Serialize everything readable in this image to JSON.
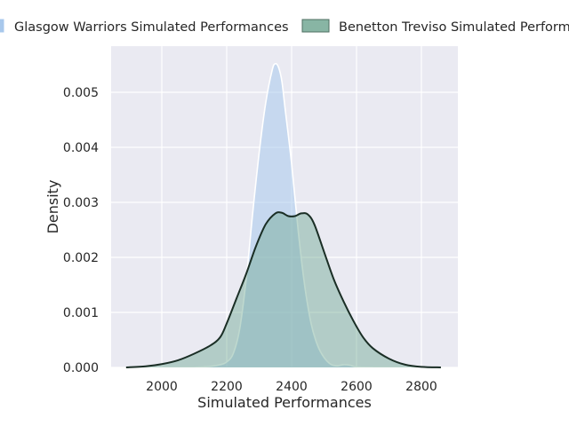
{
  "chart_data": {
    "type": "area",
    "xlabel": "Simulated Performances",
    "ylabel": "Density",
    "xlim": [
      1850,
      2880
    ],
    "ylim": [
      0,
      0.00575
    ],
    "xticks": [
      2000,
      2200,
      2400,
      2600,
      2800
    ],
    "yticks": [
      0.0,
      0.001,
      0.002,
      0.003,
      0.004,
      0.005
    ],
    "ytick_labels": [
      "0.000",
      "0.001",
      "0.002",
      "0.003",
      "0.004",
      "0.005"
    ],
    "grid": true,
    "legend_placement": "top",
    "series": [
      {
        "name": "Glasgow Warriors Simulated Performances",
        "fill": "#a8c8ec",
        "edge": "#ffffff",
        "x": [
          2100,
          2150,
          2180,
          2200,
          2220,
          2240,
          2260,
          2280,
          2300,
          2320,
          2340,
          2350,
          2360,
          2370,
          2380,
          2400,
          2420,
          2440,
          2460,
          2480,
          2500,
          2520,
          2540,
          2560,
          2580,
          2600,
          2650
        ],
        "y": [
          0.0,
          2e-05,
          5e-05,
          0.0001,
          0.00025,
          0.0007,
          0.0016,
          0.0028,
          0.0039,
          0.0048,
          0.0054,
          0.00552,
          0.00545,
          0.0052,
          0.0047,
          0.0037,
          0.0025,
          0.0015,
          0.0008,
          0.0004,
          0.00018,
          6e-05,
          3e-05,
          5e-05,
          4e-05,
          1e-05,
          0.0
        ]
      },
      {
        "name": "Benetton Treviso Simulated Performances",
        "fill": "#6fa893",
        "edge": "#1a2e25",
        "x": [
          1890,
          1950,
          2000,
          2050,
          2100,
          2150,
          2180,
          2200,
          2230,
          2260,
          2290,
          2320,
          2350,
          2370,
          2390,
          2410,
          2430,
          2450,
          2470,
          2500,
          2530,
          2560,
          2590,
          2620,
          2650,
          2700,
          2750,
          2800,
          2860
        ],
        "y": [
          0.0,
          2e-05,
          6e-05,
          0.00013,
          0.00025,
          0.0004,
          0.00055,
          0.0008,
          0.00125,
          0.0017,
          0.0022,
          0.0026,
          0.0028,
          0.00281,
          0.00275,
          0.00275,
          0.0028,
          0.00278,
          0.0026,
          0.0021,
          0.0016,
          0.0012,
          0.00085,
          0.00055,
          0.00035,
          0.00016,
          5e-05,
          1e-05,
          0.0
        ]
      }
    ]
  }
}
